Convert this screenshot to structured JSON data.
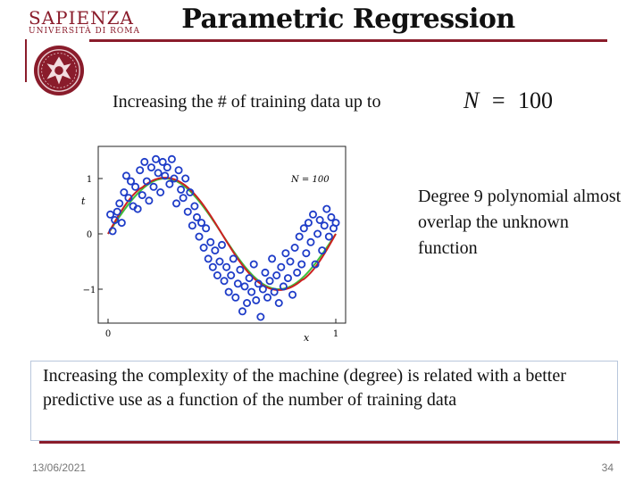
{
  "logo": {
    "name": "SAPIENZA",
    "subtitle": "UNIVERSITÀ DI ROMA"
  },
  "slide": {
    "title": "Parametric Regression",
    "subtitle": "Increasing the # of training data up to",
    "formula": {
      "lhs": "N",
      "eq": "=",
      "rhs": "100"
    },
    "side_note": "Degree 9 polynomial almost overlap the unknown function",
    "box_text": "Increasing the complexity of the machine (degree) is related with a better predictive use as a function of the number of training data",
    "date": "13/06/2021",
    "page": "34"
  },
  "colors": {
    "accent": "#8a1c2b",
    "points": "#1e3cc8",
    "fit": "#cc2020",
    "truth": "#3cbf3c"
  },
  "chart_data": {
    "type": "scatter",
    "annotation": "N = 100",
    "xlabel": "x",
    "ylabel": "t",
    "xlim": [
      0,
      1
    ],
    "ylim": [
      -1.5,
      1.5
    ],
    "x_ticks": [
      "0",
      "1"
    ],
    "y_ticks": [
      "1",
      "0",
      "−1"
    ],
    "series": [
      {
        "type": "scatter",
        "x": [
          0.01,
          0.02,
          0.03,
          0.04,
          0.05,
          0.06,
          0.07,
          0.08,
          0.09,
          0.1,
          0.11,
          0.12,
          0.13,
          0.14,
          0.15,
          0.16,
          0.17,
          0.18,
          0.19,
          0.2,
          0.21,
          0.22,
          0.23,
          0.24,
          0.25,
          0.26,
          0.27,
          0.28,
          0.29,
          0.3,
          0.31,
          0.32,
          0.33,
          0.34,
          0.35,
          0.36,
          0.37,
          0.38,
          0.39,
          0.4,
          0.41,
          0.42,
          0.43,
          0.44,
          0.45,
          0.46,
          0.47,
          0.48,
          0.49,
          0.5,
          0.51,
          0.52,
          0.53,
          0.54,
          0.55,
          0.56,
          0.57,
          0.58,
          0.59,
          0.6,
          0.61,
          0.62,
          0.63,
          0.64,
          0.65,
          0.66,
          0.67,
          0.68,
          0.69,
          0.7,
          0.71,
          0.72,
          0.73,
          0.74,
          0.75,
          0.76,
          0.77,
          0.78,
          0.79,
          0.8,
          0.81,
          0.82,
          0.83,
          0.84,
          0.85,
          0.86,
          0.87,
          0.88,
          0.89,
          0.9,
          0.91,
          0.92,
          0.93,
          0.94,
          0.95,
          0.96,
          0.97,
          0.98,
          0.99,
          1.0
        ],
        "y": [
          0.35,
          0.05,
          0.25,
          0.4,
          0.55,
          0.2,
          0.75,
          1.05,
          0.65,
          0.95,
          0.5,
          0.85,
          0.45,
          1.15,
          0.7,
          1.3,
          0.95,
          0.6,
          1.2,
          0.85,
          1.35,
          1.1,
          0.75,
          1.3,
          1.05,
          1.2,
          0.9,
          1.35,
          1.0,
          0.55,
          1.15,
          0.8,
          0.65,
          1.0,
          0.4,
          0.75,
          0.15,
          0.5,
          0.3,
          -0.05,
          0.2,
          -0.25,
          0.1,
          -0.45,
          -0.15,
          -0.6,
          -0.3,
          -0.75,
          -0.5,
          -0.2,
          -0.85,
          -0.6,
          -1.05,
          -0.75,
          -0.45,
          -1.15,
          -0.9,
          -0.65,
          -1.4,
          -0.95,
          -1.25,
          -0.8,
          -1.05,
          -0.55,
          -1.2,
          -0.9,
          -1.5,
          -1.0,
          -0.7,
          -1.15,
          -0.85,
          -0.45,
          -1.05,
          -0.75,
          -1.25,
          -0.6,
          -0.95,
          -0.35,
          -0.8,
          -0.5,
          -1.1,
          -0.25,
          -0.7,
          -0.05,
          -0.55,
          0.1,
          -0.35,
          0.2,
          -0.15,
          0.35,
          -0.55,
          0.0,
          0.25,
          -0.3,
          0.15,
          0.45,
          -0.05,
          0.3,
          0.1,
          0.2
        ]
      },
      {
        "name": "fit",
        "type": "line",
        "function": "degree 9 polynomial"
      },
      {
        "name": "truth",
        "type": "line",
        "function": "sin(2πx)"
      }
    ]
  }
}
